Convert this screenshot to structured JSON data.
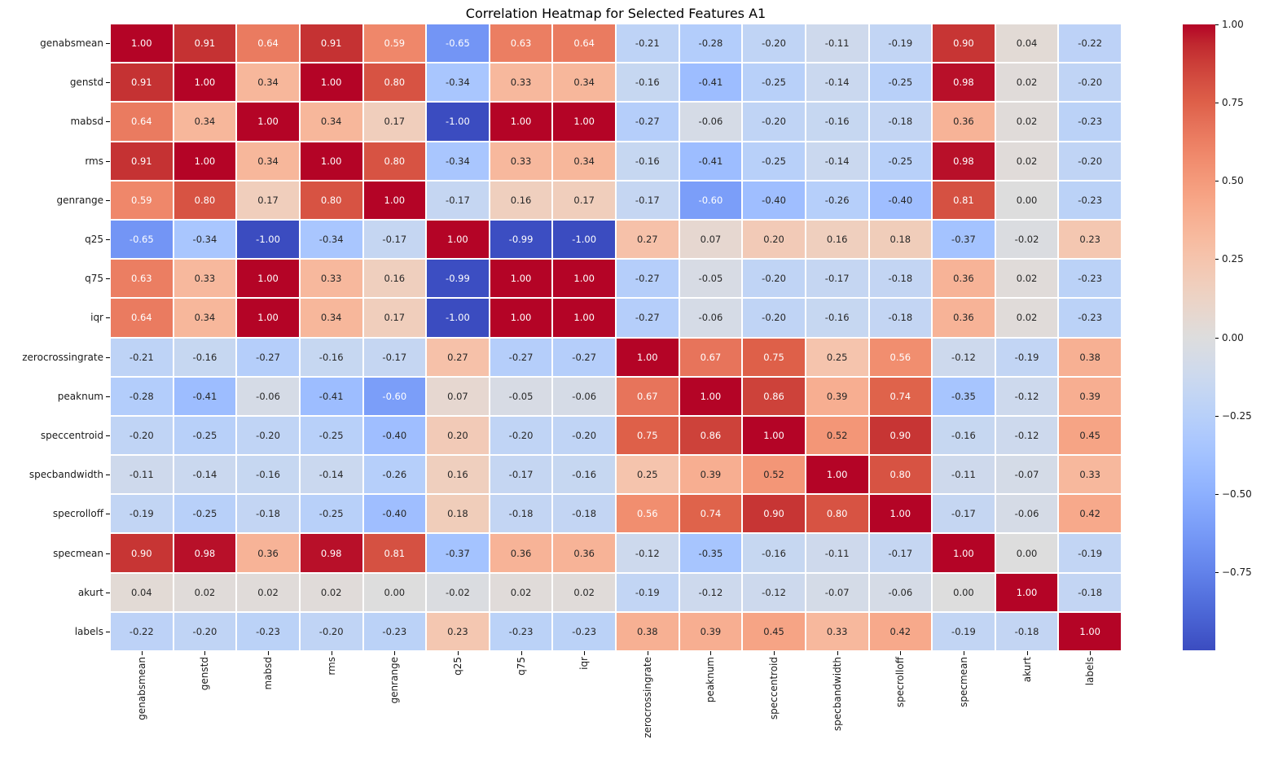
{
  "figure": {
    "background": "#ffffff"
  },
  "chart_data": {
    "type": "heatmap",
    "title": "Correlation Heatmap for Selected Features A1",
    "features": [
      "genabsmean",
      "genstd",
      "mabsd",
      "rms",
      "genrange",
      "q25",
      "q75",
      "iqr",
      "zerocrossingrate",
      "peaknum",
      "speccentroid",
      "specbandwidth",
      "specrolloff",
      "specmean",
      "akurt",
      "labels"
    ],
    "matrix": [
      [
        1.0,
        0.91,
        0.64,
        0.91,
        0.59,
        -0.65,
        0.63,
        0.64,
        -0.21,
        -0.28,
        -0.2,
        -0.11,
        -0.19,
        0.9,
        0.04,
        -0.22
      ],
      [
        0.91,
        1.0,
        0.34,
        1.0,
        0.8,
        -0.34,
        0.33,
        0.34,
        -0.16,
        -0.41,
        -0.25,
        -0.14,
        -0.25,
        0.98,
        0.02,
        -0.2
      ],
      [
        0.64,
        0.34,
        1.0,
        0.34,
        0.17,
        -1.0,
        1.0,
        1.0,
        -0.27,
        -0.06,
        -0.2,
        -0.16,
        -0.18,
        0.36,
        0.02,
        -0.23
      ],
      [
        0.91,
        1.0,
        0.34,
        1.0,
        0.8,
        -0.34,
        0.33,
        0.34,
        -0.16,
        -0.41,
        -0.25,
        -0.14,
        -0.25,
        0.98,
        0.02,
        -0.2
      ],
      [
        0.59,
        0.8,
        0.17,
        0.8,
        1.0,
        -0.17,
        0.16,
        0.17,
        -0.17,
        -0.6,
        -0.4,
        -0.26,
        -0.4,
        0.81,
        0.0,
        -0.23
      ],
      [
        -0.65,
        -0.34,
        -1.0,
        -0.34,
        -0.17,
        1.0,
        -0.99,
        -1.0,
        0.27,
        0.07,
        0.2,
        0.16,
        0.18,
        -0.37,
        -0.02,
        0.23
      ],
      [
        0.63,
        0.33,
        1.0,
        0.33,
        0.16,
        -0.99,
        1.0,
        1.0,
        -0.27,
        -0.05,
        -0.2,
        -0.17,
        -0.18,
        0.36,
        0.02,
        -0.23
      ],
      [
        0.64,
        0.34,
        1.0,
        0.34,
        0.17,
        -1.0,
        1.0,
        1.0,
        -0.27,
        -0.06,
        -0.2,
        -0.16,
        -0.18,
        0.36,
        0.02,
        -0.23
      ],
      [
        -0.21,
        -0.16,
        -0.27,
        -0.16,
        -0.17,
        0.27,
        -0.27,
        -0.27,
        1.0,
        0.67,
        0.75,
        0.25,
        0.56,
        -0.12,
        -0.19,
        0.38
      ],
      [
        -0.28,
        -0.41,
        -0.06,
        -0.41,
        -0.6,
        0.07,
        -0.05,
        -0.06,
        0.67,
        1.0,
        0.86,
        0.39,
        0.74,
        -0.35,
        -0.12,
        0.39
      ],
      [
        -0.2,
        -0.25,
        -0.2,
        -0.25,
        -0.4,
        0.2,
        -0.2,
        -0.2,
        0.75,
        0.86,
        1.0,
        0.52,
        0.9,
        -0.16,
        -0.12,
        0.45
      ],
      [
        -0.11,
        -0.14,
        -0.16,
        -0.14,
        -0.26,
        0.16,
        -0.17,
        -0.16,
        0.25,
        0.39,
        0.52,
        1.0,
        0.8,
        -0.11,
        -0.07,
        0.33
      ],
      [
        -0.19,
        -0.25,
        -0.18,
        -0.25,
        -0.4,
        0.18,
        -0.18,
        -0.18,
        0.56,
        0.74,
        0.9,
        0.8,
        1.0,
        -0.17,
        -0.06,
        0.42
      ],
      [
        0.9,
        0.98,
        0.36,
        0.98,
        0.81,
        -0.37,
        0.36,
        0.36,
        -0.12,
        -0.35,
        -0.16,
        -0.11,
        -0.17,
        1.0,
        0.0,
        -0.19
      ],
      [
        0.04,
        0.02,
        0.02,
        0.02,
        0.0,
        -0.02,
        0.02,
        0.02,
        -0.19,
        -0.12,
        -0.12,
        -0.07,
        -0.06,
        0.0,
        1.0,
        -0.18
      ],
      [
        -0.22,
        -0.2,
        -0.23,
        -0.2,
        -0.23,
        0.23,
        -0.23,
        -0.23,
        0.38,
        0.39,
        0.45,
        0.33,
        0.42,
        -0.19,
        -0.18,
        1.0
      ]
    ],
    "cell_label_format": ".2f",
    "gridline_color": "#ffffff",
    "annotation_colors": {
      "light": "#ffffff",
      "dark": "#262626"
    },
    "colormap": {
      "name": "coolwarm",
      "vmin": -1,
      "vmax": 1,
      "anchors": [
        "#3b4cc0",
        "#445acc",
        "#4d68d7",
        "#5775e1",
        "#6282ea",
        "#6c8ef1",
        "#779af7",
        "#82a5fb",
        "#8db0fe",
        "#98b9ff",
        "#a3c2ff",
        "#aec9fd",
        "#b8d0f9",
        "#c2d5f4",
        "#ccd9ee",
        "#d5dbe6",
        "#dddddd",
        "#e5d8d1",
        "#ecd3c5",
        "#f1ccb9",
        "#f5c4ad",
        "#f7bba0",
        "#f7b194",
        "#f7a687",
        "#f49a7b",
        "#f18d6f",
        "#ec7f63",
        "#e57058",
        "#de6049",
        "#d55042",
        "#cb3e38",
        "#c0282f",
        "#b40426"
      ]
    },
    "colorbar": {
      "position": "right",
      "tick_labels": [
        "1.00",
        "0.75",
        "0.50",
        "0.25",
        "0.00",
        "−0.25",
        "−0.50",
        "−0.75"
      ],
      "tick_values": [
        1.0,
        0.75,
        0.5,
        0.25,
        0.0,
        -0.25,
        -0.5,
        -0.75
      ]
    },
    "legend": null,
    "grid": "white cell separators"
  }
}
